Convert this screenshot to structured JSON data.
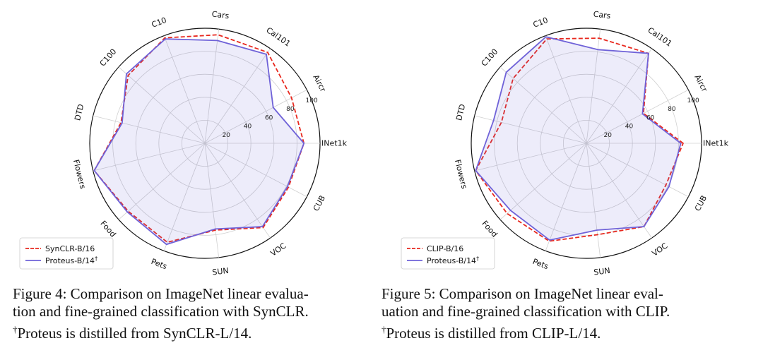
{
  "chart_data": [
    {
      "type": "radar",
      "categories": [
        "INet1k",
        "Aircr",
        "Cal101",
        "Cars",
        "C10",
        "C100",
        "DTD",
        "Flowers",
        "Food",
        "Pets",
        "SUN",
        "VOC",
        "CUB"
      ],
      "rlim": [
        0,
        100
      ],
      "r_ticks": [
        "20",
        "40",
        "60",
        "80",
        "100"
      ],
      "grid": true,
      "legend_position": "lower-left",
      "series": [
        {
          "name": "SynCLR-B/16",
          "color": "#e8281e",
          "style": "dashed",
          "values": [
            86,
            85,
            96,
            95,
            98,
            89,
            75,
            99,
            89,
            92,
            76,
            89,
            82
          ]
        },
        {
          "name": "Proteus-B/14",
          "color": "#6f62d8",
          "style": "solid",
          "fill": true,
          "values": [
            86,
            67,
            94,
            90,
            97,
            91,
            74,
            99,
            90,
            94,
            75,
            88,
            81
          ]
        }
      ]
    },
    {
      "type": "radar",
      "categories": [
        "INet1k",
        "Aircr",
        "Cal101",
        "Cars",
        "C10",
        "C100",
        "DTD",
        "Flowers",
        "Food",
        "Pets",
        "SUN",
        "VOC",
        "CUB"
      ],
      "rlim": [
        0,
        100
      ],
      "r_ticks": [
        "20",
        "40",
        "60",
        "80",
        "100"
      ],
      "grid": true,
      "legend_position": "lower-left",
      "series": [
        {
          "name": "CLIP-B/16",
          "color": "#e8281e",
          "style": "dashed",
          "values": [
            84,
            56,
            95,
            92,
            97,
            85,
            76,
            99,
            92,
            91,
            80,
            88,
            78
          ]
        },
        {
          "name": "Proteus-B/14",
          "color": "#6f62d8",
          "style": "solid",
          "fill": true,
          "values": [
            82,
            55,
            95,
            82,
            99,
            93,
            83,
            99,
            88,
            90,
            76,
            88,
            81
          ]
        }
      ]
    }
  ],
  "captions": [
    {
      "lines": [
        "Figure 4: Comparison on ImageNet linear evalua-",
        "tion and fine-grained classification with SynCLR."
      ],
      "footnote_mark": "†",
      "footnote_text": "Proteus is distilled from SynCLR-L/14."
    },
    {
      "lines": [
        "Figure 5: Comparison on ImageNet linear eval-",
        "uation and fine-grained classification with CLIP."
      ],
      "footnote_mark": "†",
      "footnote_text": "Proteus is distilled from CLIP-L/14."
    }
  ]
}
